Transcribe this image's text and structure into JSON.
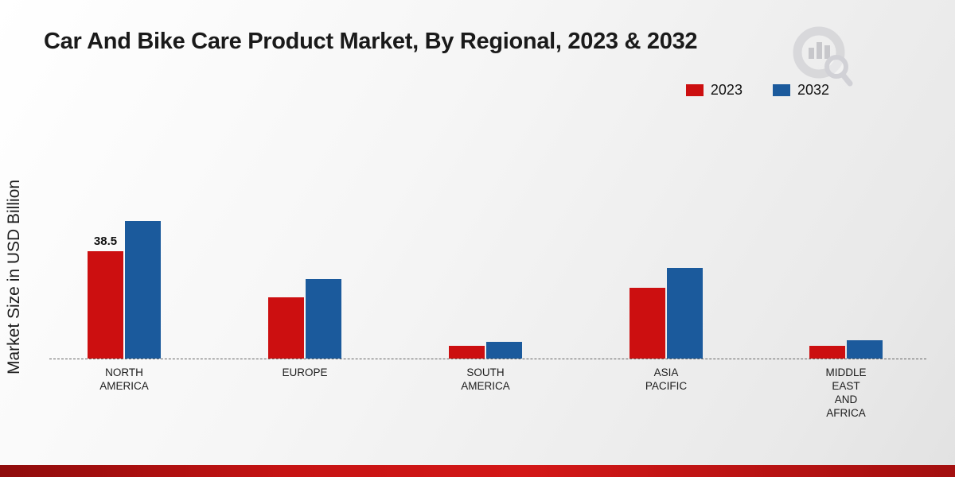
{
  "page": {
    "title": "Car And Bike Care Product Market, By Regional, 2023 & 2032",
    "ylabel": "Market Size in USD Billion",
    "footer_band_color": "#c61313"
  },
  "legend": {
    "items": [
      {
        "label": "2023",
        "color": "#cc0f10"
      },
      {
        "label": "2032",
        "color": "#1b5a9c"
      }
    ]
  },
  "chart_data": {
    "type": "bar",
    "title": "Car And Bike Care Product Market, By Regional, 2023 & 2032",
    "xlabel": "",
    "ylabel": "Market Size in USD Billion",
    "unit": "USD Billion",
    "ylim": [
      0,
      55
    ],
    "grid": false,
    "baseline_style": "dashed",
    "legend_position": "top-right",
    "categories": [
      "NORTH AMERICA",
      "EUROPE",
      "SOUTH AMERICA",
      "ASIA PACIFIC",
      "MIDDLE EAST AND AFRICA"
    ],
    "category_label_lines": [
      [
        "NORTH",
        "AMERICA"
      ],
      [
        "EUROPE"
      ],
      [
        "SOUTH",
        "AMERICA"
      ],
      [
        "ASIA",
        "PACIFIC"
      ],
      [
        "MIDDLE",
        "EAST",
        "AND",
        "AFRICA"
      ]
    ],
    "series": [
      {
        "name": "2023",
        "color": "#cc0f10",
        "values": [
          38.5,
          22,
          4.5,
          25.5,
          4.5
        ]
      },
      {
        "name": "2032",
        "color": "#1b5a9c",
        "values": [
          49.5,
          28.5,
          6,
          32.5,
          6.5
        ]
      }
    ],
    "annotations": [
      {
        "series_index": 0,
        "category_index": 0,
        "text": "38.5"
      }
    ]
  }
}
